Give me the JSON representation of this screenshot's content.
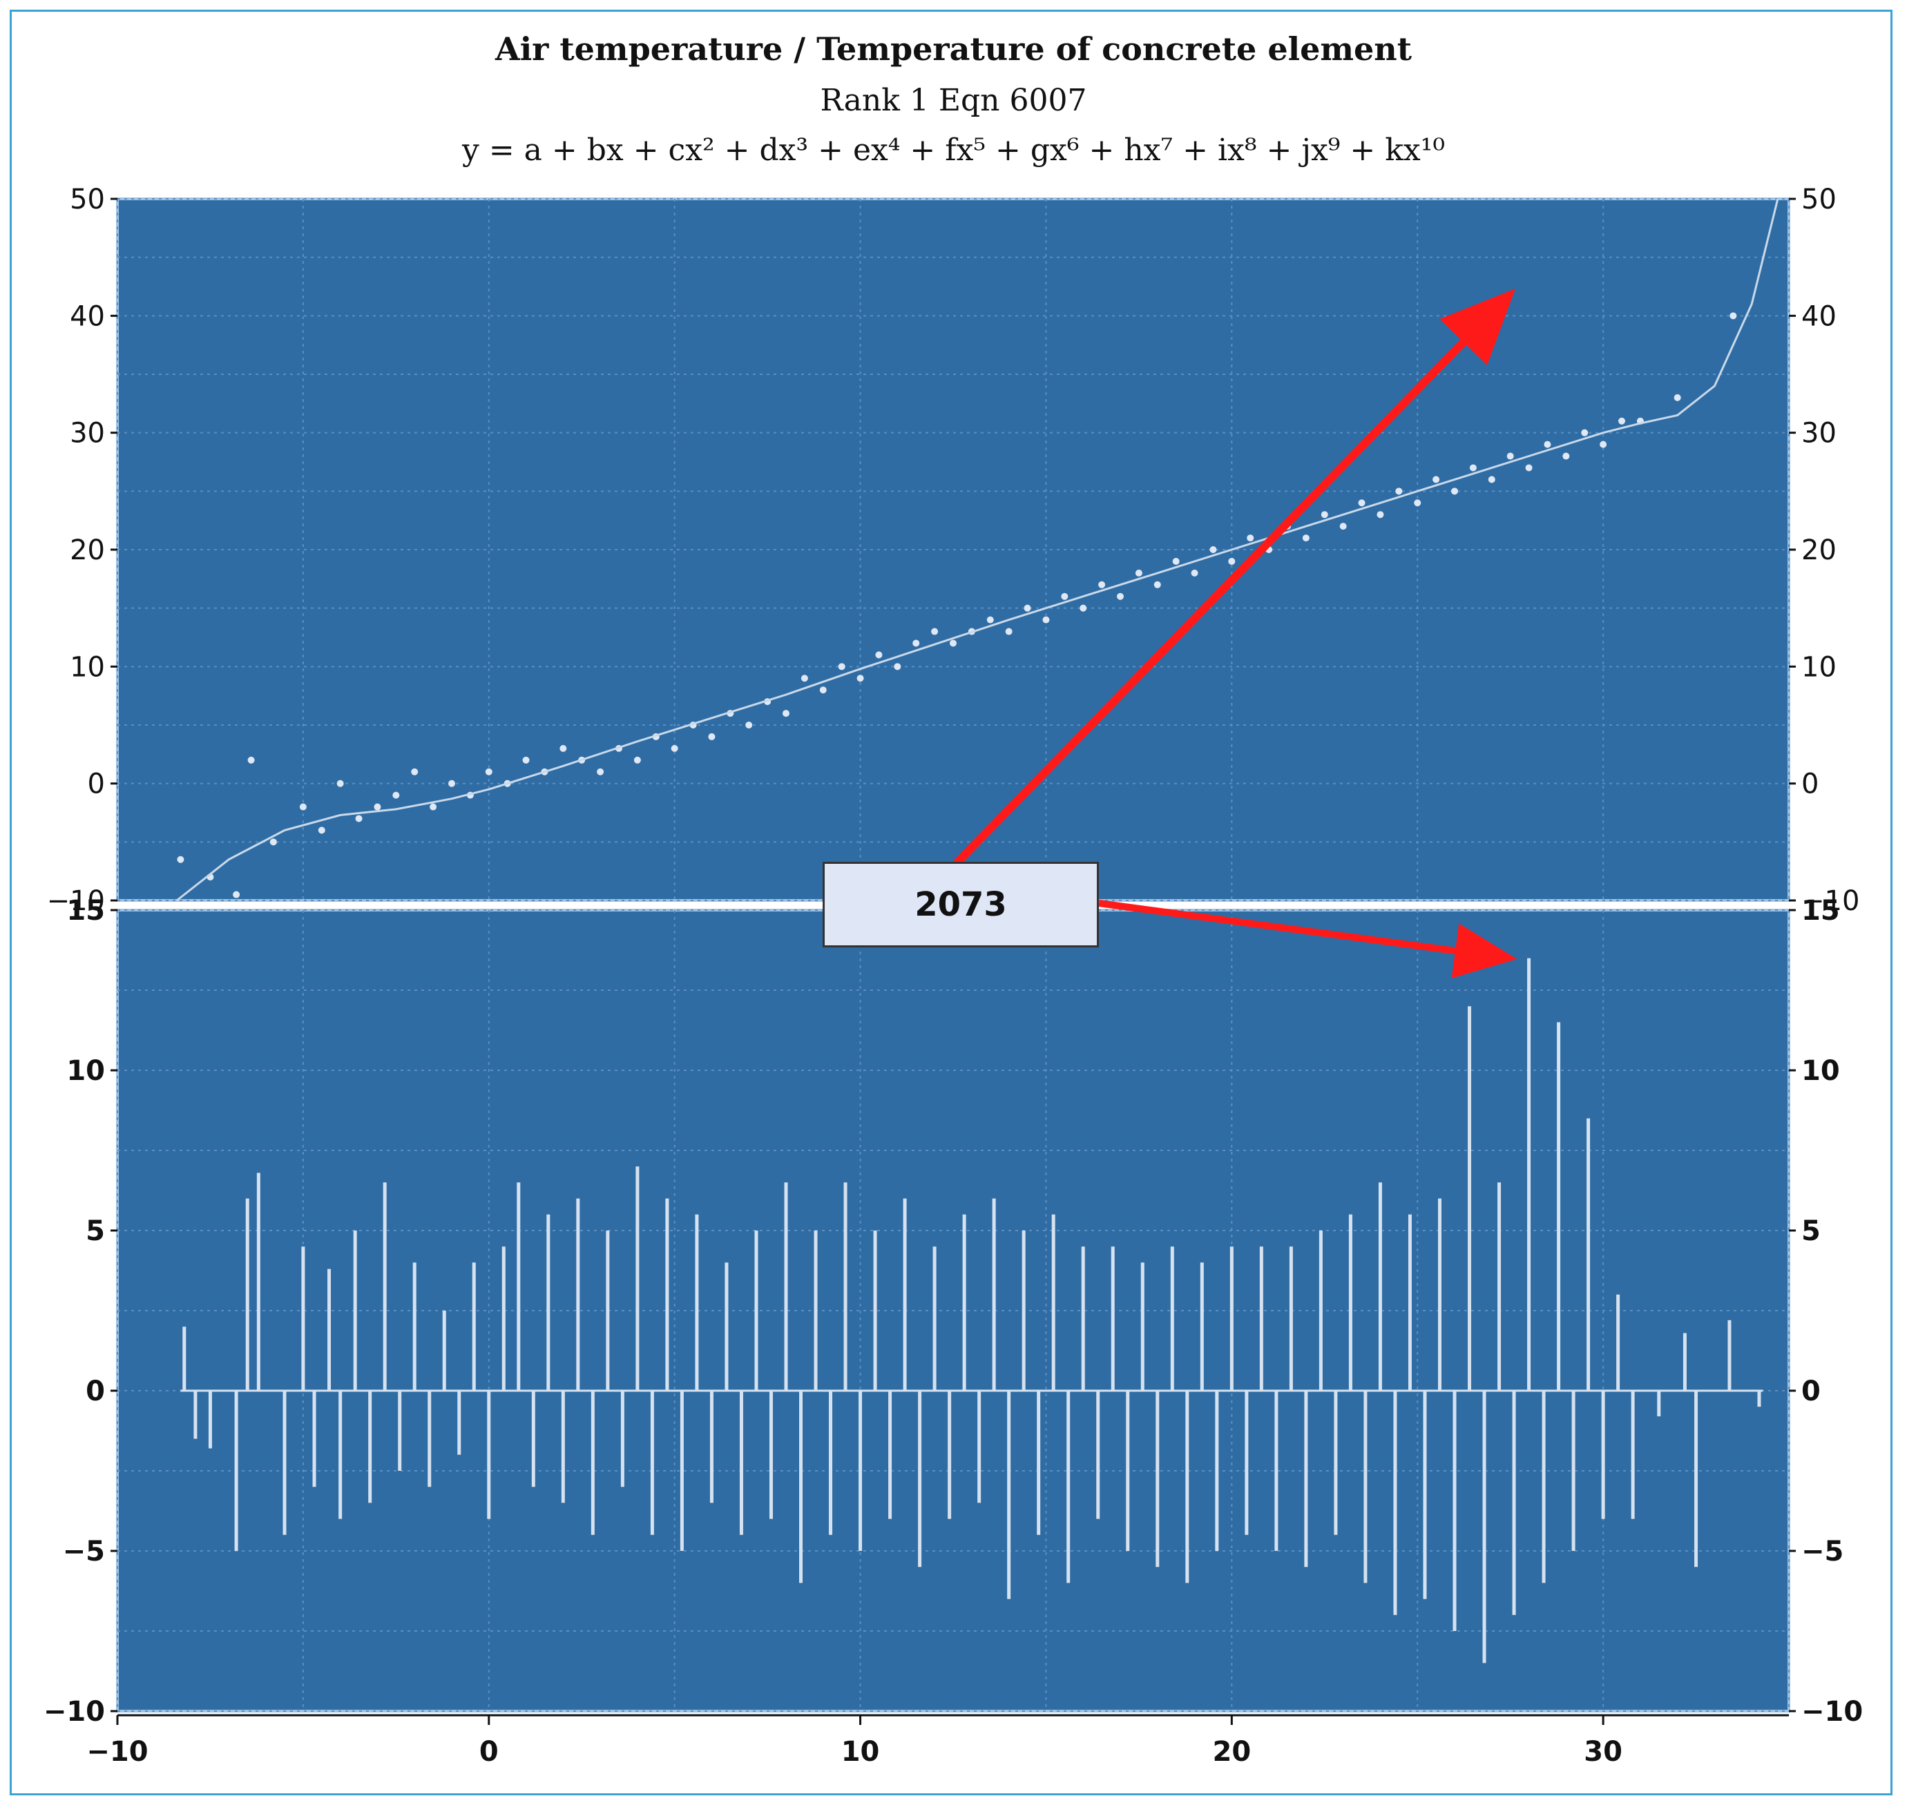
{
  "chart_data": {
    "type": "scatter",
    "title": "Air temperature / Temperature of concrete element",
    "subtitle": "Rank 1 Eqn 6007",
    "equation": "y = a + bx + cx² + dx³ + ex⁴ + fx⁵ + gx⁶ + hx⁷ + ix⁸ + jx⁹ + kx¹⁰",
    "xlabel": "",
    "ylabel": "",
    "xlim": [
      -10,
      35
    ],
    "x_ticks": [
      "−10",
      "0",
      "10",
      "20",
      "30"
    ],
    "panels": [
      {
        "name": "",
        "kind": "scatter-with-fit",
        "ylim": [
          -10,
          50
        ],
        "y_ticks": [
          "−10",
          "0",
          "10",
          "20",
          "30",
          "40",
          "50"
        ],
        "points_sampled": {
          "x": [
            -8.3,
            -7.5,
            -6.8,
            -6.4,
            -5.8,
            -5,
            -4.5,
            -4,
            -3.5,
            -3,
            -2.5,
            -2,
            -1.5,
            -1,
            -0.5,
            0,
            0.5,
            1,
            1.5,
            2,
            2.5,
            3,
            3.5,
            4,
            4.5,
            5,
            5.5,
            6,
            6.5,
            7,
            7.5,
            8,
            8.5,
            9,
            9.5,
            10,
            10.5,
            11,
            11.5,
            12,
            12.5,
            13,
            13.5,
            14,
            14.5,
            15,
            15.5,
            16,
            16.5,
            17,
            17.5,
            18,
            18.5,
            19,
            19.5,
            20,
            20.5,
            21,
            21.5,
            22,
            22.5,
            23,
            23.5,
            24,
            24.5,
            25,
            25.5,
            26,
            26.5,
            27,
            27.5,
            28,
            28.5,
            29,
            29.5,
            30,
            30.5,
            31,
            32,
            33.5
          ],
          "y": [
            -6.5,
            -8,
            -9.5,
            2,
            -5,
            -2,
            -4,
            0,
            -3,
            -2,
            -1,
            1,
            -2,
            0,
            -1,
            1,
            0,
            2,
            1,
            3,
            2,
            1,
            3,
            2,
            4,
            3,
            5,
            4,
            6,
            5,
            7,
            6,
            9,
            8,
            10,
            9,
            11,
            10,
            12,
            13,
            12,
            13,
            14,
            13,
            15,
            14,
            16,
            15,
            17,
            16,
            18,
            17,
            19,
            18,
            20,
            19,
            21,
            20,
            22,
            21,
            23,
            22,
            24,
            23,
            25,
            24,
            26,
            25,
            27,
            26,
            28,
            27,
            29,
            28,
            30,
            29,
            31,
            31,
            33,
            40
          ]
        },
        "fit_curve": {
          "x": [
            -8.4,
            -7,
            -5.5,
            -4,
            -2.5,
            -1,
            0,
            2,
            4,
            6,
            8,
            10,
            12,
            14,
            16,
            18,
            20,
            22,
            24,
            26,
            28,
            30,
            31,
            32,
            33,
            34,
            34.7
          ],
          "y": [
            -10,
            -6.5,
            -4,
            -2.7,
            -2.2,
            -1.3,
            -0.5,
            1.5,
            3.6,
            5.6,
            7.6,
            9.8,
            11.9,
            14,
            16,
            18,
            20,
            22,
            24,
            26,
            28,
            30,
            30.8,
            31.5,
            34,
            41,
            50
          ]
        }
      },
      {
        "name": "",
        "kind": "residuals",
        "ylim": [
          -10,
          15
        ],
        "y_ticks": [
          "−10",
          "−5",
          "0",
          "5",
          "10",
          "15"
        ],
        "residuals_sampled": {
          "x": [
            -8.2,
            -7.9,
            -7.5,
            -7.2,
            -6.8,
            -6.5,
            -6.2,
            -5.5,
            -5,
            -4.7,
            -4.3,
            -4,
            -3.6,
            -3.2,
            -2.8,
            -2.4,
            -2,
            -1.6,
            -1.2,
            -0.8,
            -0.4,
            0,
            0.4,
            0.8,
            1.2,
            1.6,
            2,
            2.4,
            2.8,
            3.2,
            3.6,
            4,
            4.4,
            4.8,
            5.2,
            5.6,
            6,
            6.4,
            6.8,
            7.2,
            7.6,
            8,
            8.4,
            8.8,
            9.2,
            9.6,
            10,
            10.4,
            10.8,
            11.2,
            11.6,
            12,
            12.4,
            12.8,
            13.2,
            13.6,
            14,
            14.4,
            14.8,
            15.2,
            15.6,
            16,
            16.4,
            16.8,
            17.2,
            17.6,
            18,
            18.4,
            18.8,
            19.2,
            19.6,
            20,
            20.4,
            20.8,
            21.2,
            21.6,
            22,
            22.4,
            22.8,
            23.2,
            23.6,
            24,
            24.4,
            24.8,
            25.2,
            25.6,
            26,
            26.4,
            26.8,
            27.2,
            27.6,
            28,
            28.4,
            28.8,
            29.2,
            29.6,
            30,
            30.4,
            30.8,
            31.5,
            32.2,
            32.5,
            33.4,
            34.2
          ],
          "y": [
            2,
            -1.5,
            -1.8,
            0,
            -5,
            6,
            6.8,
            -4.5,
            4.5,
            -3,
            3.8,
            -4,
            5,
            -3.5,
            6.5,
            -2.5,
            4,
            -3,
            2.5,
            -2,
            4,
            -4,
            4.5,
            6.5,
            -3,
            5.5,
            -3.5,
            6,
            -4.5,
            5,
            -3,
            7,
            -4.5,
            6,
            -5,
            5.5,
            -3.5,
            4,
            -4.5,
            5,
            -4,
            6.5,
            -6,
            5,
            -4.5,
            6.5,
            -5,
            5,
            -4,
            6,
            -5.5,
            4.5,
            -4,
            5.5,
            -3.5,
            6,
            -6.5,
            5,
            -4.5,
            5.5,
            -6,
            4.5,
            -4,
            4.5,
            -5,
            4,
            -5.5,
            4.5,
            -6,
            4,
            -5,
            4.5,
            -4.5,
            4.5,
            -5,
            4.5,
            -5.5,
            5,
            -4.5,
            5.5,
            -6,
            6.5,
            -7,
            5.5,
            -6.5,
            6,
            -7.5,
            12,
            -8.5,
            6.5,
            -7,
            13.5,
            -6,
            11.5,
            -5,
            8.5,
            -4,
            3,
            -4,
            -0.8,
            1.8,
            -5.5,
            2.2,
            -0.5
          ]
        }
      }
    ],
    "annotation": {
      "label": "2073",
      "points_to": [
        {
          "panel": "scatter-with-fit",
          "x": 27.2,
          "y": 41
        },
        {
          "panel": "residuals",
          "x": 27.2,
          "y": 13.5
        }
      ]
    },
    "grid": true,
    "legend": "none",
    "colors": {
      "plot_background": "#2f6ca3",
      "points": "#dfe8f4",
      "fit_line": "#c9d9ea",
      "residual_bars": "#d6e2f0",
      "arrow": "#ff1a1a",
      "frame_border": "#3aa3d6",
      "callout_fill": "#dfe6f5"
    }
  }
}
